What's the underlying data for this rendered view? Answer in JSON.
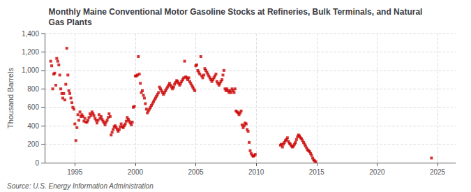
{
  "chart_data": {
    "type": "scatter",
    "title": "Monthly Maine Conventional Motor Gasoline Stocks at Refineries, Bulk Terminals, and Natural\nGas Plants",
    "ylabel": "Thousand Barrels",
    "annotations": [
      "Source: U.S. Energy Information Administration"
    ],
    "color": "#cc0000",
    "marker": "square",
    "grid": true,
    "xlim": [
      1992.5,
      2026.5
    ],
    "xticks": [
      1995,
      2000,
      2005,
      2010,
      2015,
      2020,
      2025
    ],
    "ylim": [
      0,
      1400
    ],
    "yticks": [
      0,
      200,
      400,
      600,
      800,
      {
        "value": 1000,
        "label": "1,000"
      },
      {
        "value": 1200,
        "label": "1,200"
      },
      {
        "value": 1400,
        "label": "1,400"
      }
    ],
    "x": [
      1993.0,
      1993.08,
      1993.17,
      1993.25,
      1993.33,
      1993.42,
      1993.5,
      1993.58,
      1993.67,
      1993.75,
      1993.83,
      1993.92,
      1994.0,
      1994.08,
      1994.17,
      1994.25,
      1994.33,
      1994.42,
      1994.5,
      1994.58,
      1994.67,
      1994.75,
      1994.83,
      1994.92,
      1995.0,
      1995.08,
      1995.17,
      1995.25,
      1995.33,
      1995.42,
      1995.5,
      1995.58,
      1995.67,
      1995.75,
      1995.83,
      1995.92,
      1996.0,
      1996.08,
      1996.17,
      1996.25,
      1996.33,
      1996.42,
      1996.5,
      1996.58,
      1996.67,
      1996.75,
      1996.83,
      1996.92,
      1997.0,
      1997.08,
      1997.17,
      1997.25,
      1997.33,
      1997.42,
      1997.5,
      1997.58,
      1997.67,
      1997.75,
      1997.83,
      1997.92,
      1998.0,
      1998.08,
      1998.17,
      1998.25,
      1998.33,
      1998.42,
      1998.5,
      1998.58,
      1998.67,
      1998.75,
      1998.83,
      1998.92,
      1999.0,
      1999.08,
      1999.17,
      1999.25,
      1999.33,
      1999.42,
      1999.5,
      1999.58,
      1999.67,
      1999.75,
      1999.83,
      1999.92,
      2000.0,
      2000.08,
      2000.17,
      2000.25,
      2000.33,
      2000.42,
      2000.5,
      2000.58,
      2000.67,
      2000.75,
      2000.83,
      2000.92,
      2001.0,
      2001.08,
      2001.17,
      2001.25,
      2001.33,
      2001.42,
      2001.5,
      2001.58,
      2001.67,
      2001.75,
      2001.83,
      2001.92,
      2002.0,
      2002.08,
      2002.17,
      2002.25,
      2002.33,
      2002.42,
      2002.5,
      2002.58,
      2002.67,
      2002.75,
      2002.83,
      2002.92,
      2003.0,
      2003.08,
      2003.17,
      2003.25,
      2003.33,
      2003.42,
      2003.5,
      2003.58,
      2003.67,
      2003.75,
      2003.83,
      2003.92,
      2004.0,
      2004.08,
      2004.17,
      2004.25,
      2004.33,
      2004.42,
      2004.5,
      2004.58,
      2004.67,
      2004.75,
      2004.83,
      2004.92,
      2005.0,
      2005.08,
      2005.17,
      2005.25,
      2005.33,
      2005.42,
      2005.5,
      2005.58,
      2005.67,
      2005.75,
      2005.83,
      2005.92,
      2006.0,
      2006.08,
      2006.17,
      2006.25,
      2006.33,
      2006.42,
      2006.5,
      2006.58,
      2006.67,
      2006.75,
      2006.83,
      2006.92,
      2007.0,
      2007.08,
      2007.17,
      2007.25,
      2007.33,
      2007.42,
      2007.5,
      2007.58,
      2007.67,
      2007.75,
      2007.83,
      2007.92,
      2008.0,
      2008.08,
      2008.17,
      2008.25,
      2008.33,
      2008.42,
      2008.5,
      2008.58,
      2008.67,
      2008.75,
      2008.83,
      2008.92,
      2009.0,
      2009.08,
      2009.17,
      2009.25,
      2009.33,
      2009.42,
      2009.5,
      2009.58,
      2009.67,
      2009.75,
      2009.83,
      2009.92,
      2012.0,
      2012.08,
      2012.17,
      2012.25,
      2012.33,
      2012.42,
      2012.5,
      2012.58,
      2012.67,
      2012.75,
      2012.83,
      2012.92,
      2013.0,
      2013.08,
      2013.17,
      2013.25,
      2013.33,
      2013.42,
      2013.5,
      2013.58,
      2013.67,
      2013.75,
      2013.83,
      2013.92,
      2014.0,
      2014.08,
      2014.17,
      2014.25,
      2014.33,
      2014.42,
      2014.5,
      2014.58,
      2014.67,
      2014.75,
      2014.83,
      2014.92,
      2024.5
    ],
    "values": [
      1100,
      1050,
      800,
      960,
      970,
      840,
      1130,
      1100,
      1060,
      950,
      800,
      750,
      700,
      750,
      680,
      850,
      1240,
      950,
      780,
      750,
      700,
      650,
      600,
      580,
      420,
      240,
      380,
      520,
      460,
      550,
      500,
      520,
      500,
      450,
      480,
      440,
      440,
      460,
      490,
      530,
      510,
      550,
      530,
      510,
      480,
      460,
      430,
      460,
      520,
      480,
      500,
      470,
      450,
      430,
      410,
      440,
      460,
      490,
      530,
      500,
      300,
      330,
      360,
      390,
      400,
      380,
      360,
      340,
      360,
      390,
      420,
      390,
      380,
      400,
      420,
      450,
      490,
      470,
      450,
      430,
      410,
      440,
      600,
      610,
      940,
      940,
      950,
      1150,
      960,
      860,
      760,
      780,
      730,
      700,
      640,
      580,
      540,
      560,
      580,
      600,
      620,
      640,
      660,
      680,
      700,
      720,
      740,
      760,
      820,
      800,
      780,
      760,
      740,
      760,
      780,
      800,
      820,
      840,
      860,
      840,
      820,
      800,
      820,
      850,
      870,
      890,
      880,
      860,
      840,
      860,
      880,
      900,
      920,
      1100,
      930,
      920,
      900,
      920,
      880,
      860,
      840,
      820,
      800,
      780,
      1050,
      1060,
      1000,
      980,
      960,
      1150,
      940,
      920,
      950,
      1020,
      1000,
      980,
      960,
      940,
      920,
      900,
      880,
      900,
      920,
      940,
      960,
      880,
      860,
      840,
      860,
      880,
      900,
      950,
      1000,
      800,
      780,
      800,
      780,
      760,
      780,
      760,
      800,
      780,
      760,
      800,
      560,
      550,
      540,
      520,
      540,
      560,
      410,
      380,
      400,
      430,
      420,
      360,
      340,
      220,
      130,
      100,
      80,
      70,
      75,
      90,
      190,
      200,
      170,
      200,
      220,
      240,
      250,
      270,
      230,
      210,
      200,
      180,
      170,
      180,
      200,
      220,
      250,
      280,
      300,
      290,
      270,
      260,
      240,
      220,
      200,
      180,
      160,
      140,
      130,
      120,
      100,
      80,
      50,
      30,
      20,
      10,
      50
    ]
  }
}
